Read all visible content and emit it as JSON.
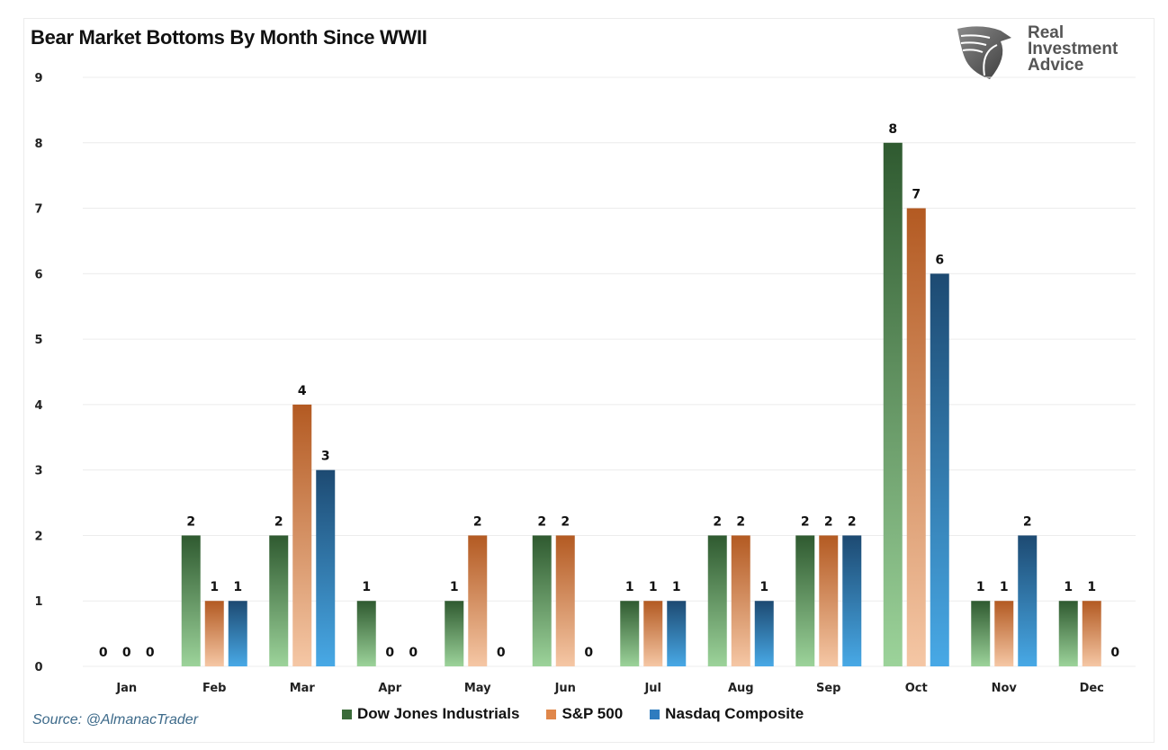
{
  "chart_data": {
    "type": "bar",
    "title": "Bear Market Bottoms By Month Since WWII",
    "xlabel": "",
    "ylabel": "",
    "ylim": [
      0,
      9
    ],
    "yticks": [
      "0",
      "1",
      "2",
      "3",
      "4",
      "5",
      "6",
      "7",
      "8",
      "9"
    ],
    "grid": true,
    "legend_position": "bottom",
    "categories": [
      "Jan",
      "Feb",
      "Mar",
      "Apr",
      "May",
      "Jun",
      "Jul",
      "Aug",
      "Sep",
      "Oct",
      "Nov",
      "Dec"
    ],
    "series": [
      {
        "name": "Dow Jones Industrials",
        "color_top": "#2f5a30",
        "color_bottom": "#9cd39a",
        "values": [
          0,
          2,
          2,
          1,
          1,
          2,
          1,
          2,
          2,
          8,
          1,
          1
        ]
      },
      {
        "name": "S&P 500",
        "color_top": "#b35a22",
        "color_bottom": "#f5c7a5",
        "values": [
          0,
          1,
          4,
          0,
          2,
          2,
          1,
          2,
          2,
          7,
          1,
          1
        ]
      },
      {
        "name": "Nasdaq Composite",
        "color_top": "#1d4a72",
        "color_bottom": "#48a9e6",
        "values": [
          0,
          1,
          3,
          0,
          0,
          0,
          1,
          1,
          2,
          6,
          2,
          0
        ]
      }
    ],
    "data_labels": true
  },
  "header": {
    "title": "Bear Market Bottoms By Month Since WWII"
  },
  "logo": {
    "icon": "eagle-shield-icon",
    "lines": [
      "Real",
      "Investment",
      "Advice"
    ]
  },
  "footer": {
    "source": "Source: @AlmanacTrader"
  },
  "legend": {
    "items": [
      {
        "label": "Dow Jones Industrials",
        "color": "#3b6b3a"
      },
      {
        "label": "S&P 500",
        "color": "#e0874a"
      },
      {
        "label": "Nasdaq Composite",
        "color": "#2f7cbf"
      }
    ]
  }
}
